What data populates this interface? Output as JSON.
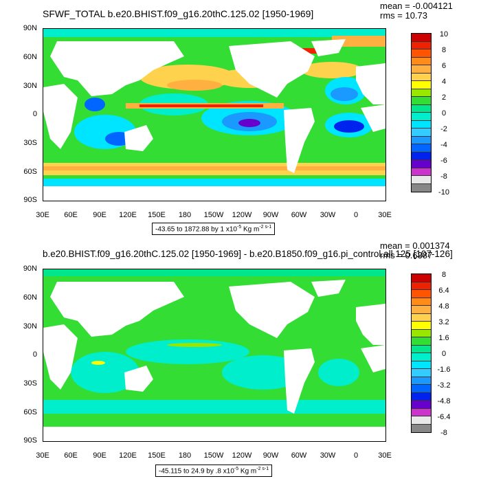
{
  "panels": [
    {
      "title": "SFWF_TOTAL b.e20.BHIST.f09_g16.20thC.125.02 [1950-1969]",
      "mean": "mean = -0.004121",
      "rms": "rms = 10.73",
      "lat_labels": [
        "90N",
        "60N",
        "30N",
        "0",
        "30S",
        "60S",
        "90S"
      ],
      "lon_labels": [
        "30E",
        "60E",
        "90E",
        "120E",
        "150E",
        "180",
        "150W",
        "120W",
        "90W",
        "60W",
        "30W",
        "0",
        "30E"
      ],
      "colorbar_labels": [
        "10",
        "8",
        "6",
        "4",
        "2",
        "0",
        "-2",
        "-4",
        "-6",
        "-8",
        "-10"
      ],
      "info_text": "-43.65 to 1872.88 by 1 x10",
      "info_exp": "-5",
      "info_unit": " Kg m",
      "info_unit_exp": "-2 s-1"
    },
    {
      "title": "b.e20.BHIST.f09_g16.20thC.125.02 [1950-1969] - b.e20.B1850.f09_g16.pi_control.all.125 [107-126]",
      "mean": "mean = 0.001374",
      "rms": "rms = 0.6387",
      "lat_labels": [
        "90N",
        "60N",
        "30N",
        "0",
        "30S",
        "60S",
        "90S"
      ],
      "lon_labels": [
        "30E",
        "60E",
        "90E",
        "120E",
        "150E",
        "180",
        "150W",
        "120W",
        "90W",
        "60W",
        "30W",
        "0",
        "30E"
      ],
      "colorbar_labels": [
        "8",
        "6.4",
        "4.8",
        "3.2",
        "1.6",
        "0",
        "-1.6",
        "-3.2",
        "-4.8",
        "-6.4",
        "-8"
      ],
      "info_text": "-45.115 to 24.9 by .8 x10",
      "info_exp": "-5",
      "info_unit": " Kg m",
      "info_unit_exp": "-2 s-1"
    }
  ],
  "colors": {
    "scale": [
      "#cc0000",
      "#ee2200",
      "#ff5500",
      "#ff8c1a",
      "#ffb040",
      "#ffd24d",
      "#ffff00",
      "#99e600",
      "#33dd33",
      "#00e68c",
      "#00eecc",
      "#00e5ff",
      "#33ccff",
      "#1a99ff",
      "#0066ff",
      "#0022ee",
      "#6600cc",
      "#cc33cc",
      "#e8e8e8",
      "#888888"
    ],
    "land": "#ffffff"
  }
}
